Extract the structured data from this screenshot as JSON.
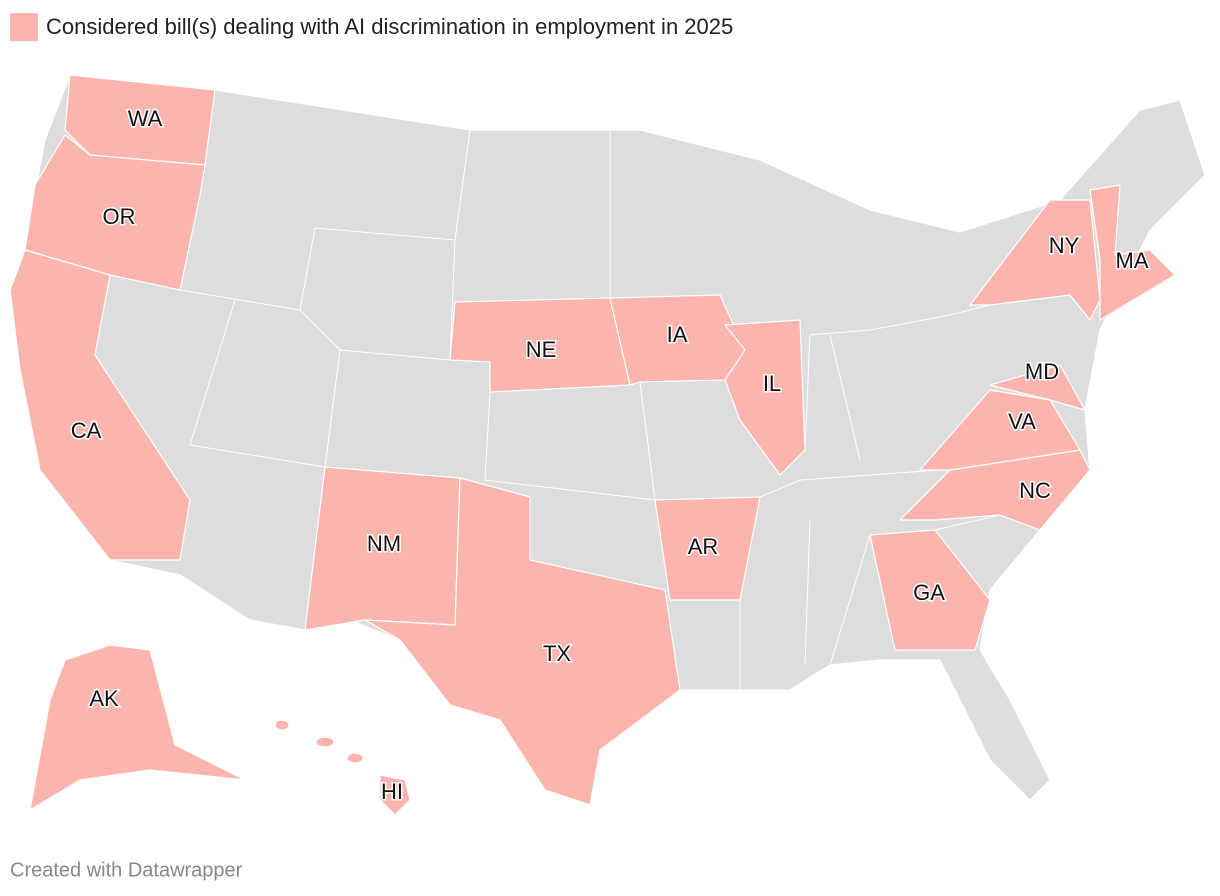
{
  "legend": {
    "label": "Considered bill(s) dealing with AI discrimination in employment in 2025",
    "color": "#fbb4ae"
  },
  "base_color": "#dddddd",
  "states": [
    {
      "label": "WA"
    },
    {
      "label": "OR"
    },
    {
      "label": "CA"
    },
    {
      "label": "NE"
    },
    {
      "label": "IA"
    },
    {
      "label": "IL"
    },
    {
      "label": "NM"
    },
    {
      "label": "TX"
    },
    {
      "label": "AR"
    },
    {
      "label": "GA"
    },
    {
      "label": "NC"
    },
    {
      "label": "VA"
    },
    {
      "label": "MD"
    },
    {
      "label": "NY"
    },
    {
      "label": "MA"
    },
    {
      "label": "AK"
    },
    {
      "label": "HI"
    }
  ],
  "footer": "Created with Datawrapper"
}
